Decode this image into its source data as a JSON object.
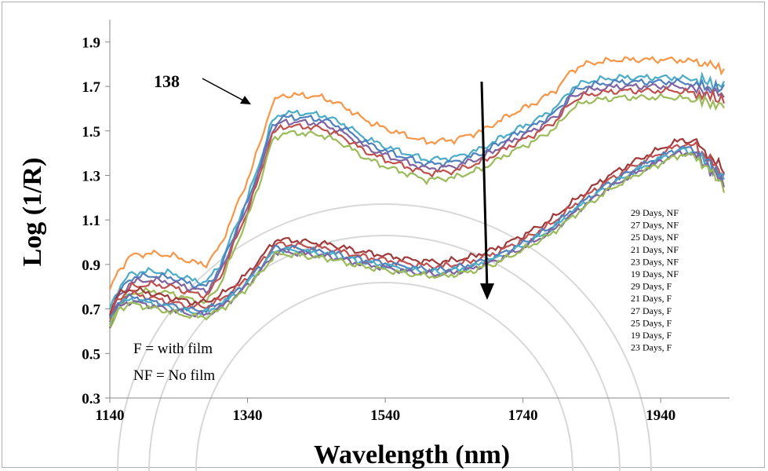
{
  "chart_data": {
    "type": "line",
    "xlabel": "Wavelength (nm)",
    "ylabel": "Log (1/R)",
    "xlim": [
      1140,
      2040
    ],
    "ylim": [
      0.3,
      2.0
    ],
    "xticks": [
      "1140",
      "1340",
      "1540",
      "1740",
      "1940"
    ],
    "yticks": [
      "0.3",
      "0.5",
      "0.7",
      "0.9",
      "1.1",
      "1.3",
      "1.5",
      "1.7",
      "1.9"
    ],
    "annotation": "138",
    "notes": [
      "F = with film",
      "NF = No film"
    ],
    "legend_position": "right",
    "colors": {
      "orange": "#F79646",
      "blue": "#4F81BD",
      "red": "#C0504D",
      "green": "#9BBB59",
      "purple": "#8064A2",
      "teal": "#4BACC6",
      "darkred": "#A0393A"
    },
    "series": [
      {
        "name": "29 Days, NF",
        "color": "#F79646",
        "offset": 0.08
      },
      {
        "name": "27 Days, NF",
        "color": "#4BACC6",
        "offset": 0.0
      },
      {
        "name": "25 Days, NF",
        "color": "#4F81BD",
        "offset": -0.02
      },
      {
        "name": "21 Days, NF",
        "color": "#8064A2",
        "offset": -0.04
      },
      {
        "name": "23 Days, NF",
        "color": "#C0504D",
        "offset": -0.06
      },
      {
        "name": "19 Days, NF",
        "color": "#9BBB59",
        "offset": -0.09
      },
      {
        "name": "29 Days, F",
        "color": "#A0393A",
        "offset": 0.03
      },
      {
        "name": "21 Days, F",
        "color": "#C0504D",
        "offset": 0.01
      },
      {
        "name": "27 Days, F",
        "color": "#4F81BD",
        "offset": -0.005
      },
      {
        "name": "25 Days, F",
        "color": "#4BACC6",
        "offset": -0.015
      },
      {
        "name": "19 Days, F",
        "color": "#8064A2",
        "offset": -0.025
      },
      {
        "name": "23 Days, F",
        "color": "#9BBB59",
        "offset": -0.035
      }
    ],
    "base_curves": {
      "NF": {
        "x": [
          1140,
          1150,
          1170,
          1200,
          1230,
          1260,
          1280,
          1300,
          1320,
          1340,
          1360,
          1375,
          1390,
          1420,
          1450,
          1480,
          1510,
          1540,
          1570,
          1600,
          1640,
          1680,
          1720,
          1760,
          1790,
          1810,
          1830,
          1850,
          1880,
          1920,
          1960,
          1990,
          2020,
          2035
        ],
        "y": [
          0.7,
          0.78,
          0.86,
          0.87,
          0.86,
          0.83,
          0.82,
          0.9,
          1.05,
          1.2,
          1.38,
          1.54,
          1.58,
          1.58,
          1.57,
          1.53,
          1.47,
          1.43,
          1.4,
          1.37,
          1.38,
          1.42,
          1.49,
          1.55,
          1.61,
          1.69,
          1.72,
          1.73,
          1.74,
          1.74,
          1.74,
          1.73,
          1.71,
          1.7
        ]
      },
      "F": {
        "x": [
          1140,
          1150,
          1170,
          1200,
          1230,
          1260,
          1280,
          1300,
          1330,
          1360,
          1380,
          1400,
          1430,
          1460,
          1500,
          1540,
          1580,
          1620,
          1660,
          1700,
          1740,
          1780,
          1820,
          1860,
          1900,
          1940,
          1970,
          1990,
          2010,
          2035
        ],
        "y": [
          0.65,
          0.73,
          0.76,
          0.74,
          0.72,
          0.7,
          0.7,
          0.73,
          0.8,
          0.9,
          0.98,
          0.98,
          0.97,
          0.96,
          0.93,
          0.91,
          0.89,
          0.88,
          0.9,
          0.94,
          1.0,
          1.07,
          1.17,
          1.26,
          1.33,
          1.39,
          1.43,
          1.42,
          1.36,
          1.28
        ]
      }
    }
  }
}
